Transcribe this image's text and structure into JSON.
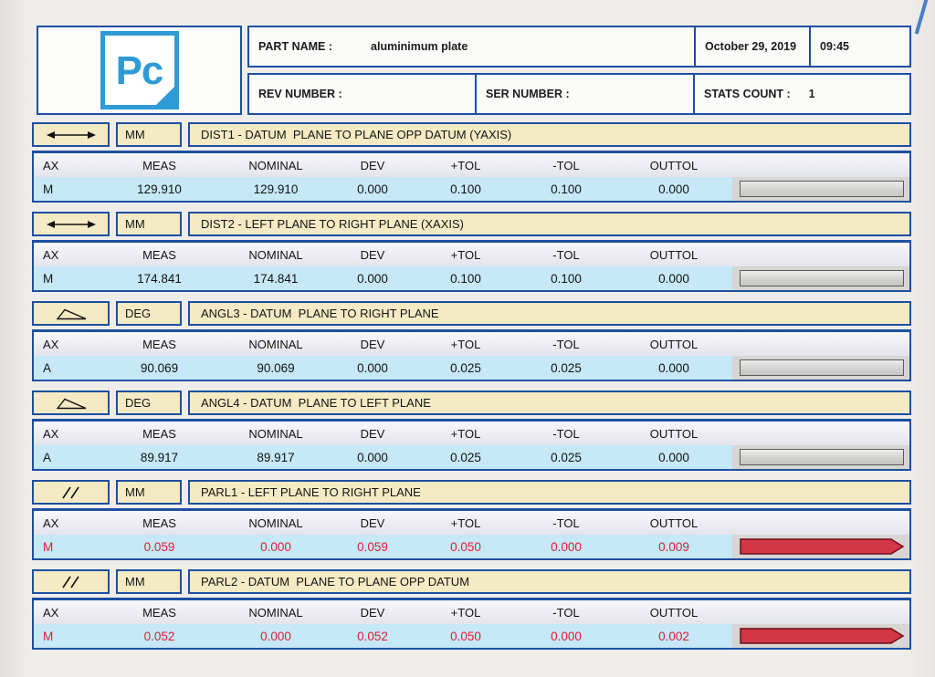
{
  "header": {
    "logo_text": "Pc",
    "part_name_label": "PART NAME :",
    "part_name_value": "aluminimum plate",
    "date": "October 29, 2019",
    "time": "09:45",
    "rev_number_label": "REV NUMBER :",
    "ser_number_label": "SER NUMBER :",
    "stats_count_label": "STATS COUNT :",
    "stats_count_value": "1"
  },
  "columns": [
    "AX",
    "MEAS",
    "NOMINAL",
    "DEV",
    "+TOL",
    "-TOL",
    "OUTTOL"
  ],
  "blocks": [
    {
      "icon": "distance-arrow",
      "unit": "MM",
      "title": "DIST1 - DATUM  PLANE TO PLANE OPP DATUM (YAXIS)",
      "ax": "M",
      "meas": "129.910",
      "nominal": "129.910",
      "dev": "0.000",
      "ptol": "0.100",
      "ntol": "0.100",
      "outtol": "0.000",
      "out_of_tol": false
    },
    {
      "icon": "distance-arrow",
      "unit": "MM",
      "title": "DIST2 - LEFT PLANE TO RIGHT PLANE (XAXIS)",
      "ax": "M",
      "meas": "174.841",
      "nominal": "174.841",
      "dev": "0.000",
      "ptol": "0.100",
      "ntol": "0.100",
      "outtol": "0.000",
      "out_of_tol": false
    },
    {
      "icon": "angle",
      "unit": "DEG",
      "title": "ANGL3 - DATUM  PLANE TO RIGHT PLANE",
      "ax": "A",
      "meas": "90.069",
      "nominal": "90.069",
      "dev": "0.000",
      "ptol": "0.025",
      "ntol": "0.025",
      "outtol": "0.000",
      "out_of_tol": false
    },
    {
      "icon": "angle",
      "unit": "DEG",
      "title": "ANGL4 - DATUM  PLANE TO LEFT PLANE",
      "ax": "A",
      "meas": "89.917",
      "nominal": "89.917",
      "dev": "0.000",
      "ptol": "0.025",
      "ntol": "0.025",
      "outtol": "0.000",
      "out_of_tol": false
    },
    {
      "icon": "parallelism",
      "unit": "MM",
      "title": "PARL1 - LEFT PLANE TO RIGHT PLANE",
      "ax": "M",
      "meas": "0.059",
      "nominal": "0.000",
      "dev": "0.059",
      "ptol": "0.050",
      "ntol": "0.000",
      "outtol": "0.009",
      "out_of_tol": true
    },
    {
      "icon": "parallelism",
      "unit": "MM",
      "title": "PARL2 - DATUM  PLANE TO PLANE OPP DATUM",
      "ax": "M",
      "meas": "0.052",
      "nominal": "0.000",
      "dev": "0.052",
      "ptol": "0.050",
      "ntol": "0.000",
      "outtol": "0.002",
      "out_of_tol": true
    }
  ],
  "colors": {
    "border_blue": "#1d4fa1",
    "logo_blue": "#2f9bd6",
    "cream": "#f4ebc4",
    "data_row_blue": "#c6e8f7",
    "out_of_tol_red": "#dd2032",
    "bar_red_fill": "#d23545",
    "bar_zone_gray": "#d7d6d3"
  }
}
